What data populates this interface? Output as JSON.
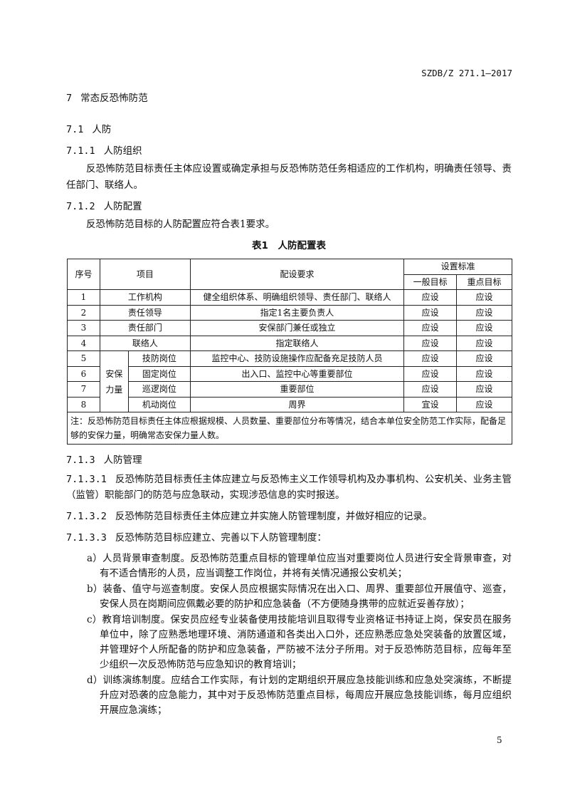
{
  "header": {
    "doc_code": "SZDB/Z 271.1—2017"
  },
  "sections": {
    "s7": {
      "num": "7",
      "title": "常态反恐怖防范"
    },
    "s71": {
      "num": "7.1",
      "title": "人防"
    },
    "s711": {
      "num": "7.1.1",
      "title": "人防组织",
      "para": "反恐怖防范目标责任主体应设置或确定承担与反恐怖防范任务相适应的工作机构，明确责任领导、责任部门、联络人。"
    },
    "s712": {
      "num": "7.1.2",
      "title": "人防配置",
      "para": "反恐怖防范目标的人防配置应符合表1要求。"
    },
    "s713": {
      "num": "7.1.3",
      "title": "人防管理"
    }
  },
  "table": {
    "caption": "表1　人防配置表",
    "headers": {
      "no": "序号",
      "item": "项目",
      "req": "配设要求",
      "std": "设置标准",
      "general": "一般目标",
      "key": "重点目标"
    },
    "group_label": "安保力量",
    "rows": [
      {
        "no": "1",
        "item": "工作机构",
        "req": "健全组织体系、明确组织领导、责任部门、联络人",
        "general": "应设",
        "key": "应设"
      },
      {
        "no": "2",
        "item": "责任领导",
        "req": "指定1名主要负责人",
        "general": "应设",
        "key": "应设"
      },
      {
        "no": "3",
        "item": "责任部门",
        "req": "安保部门兼任或独立",
        "general": "应设",
        "key": "应设"
      },
      {
        "no": "4",
        "item": "联络人",
        "req": "指定联络人",
        "general": "应设",
        "key": "应设"
      },
      {
        "no": "5",
        "item": "技防岗位",
        "req": "监控中心、技防设施操作应配备充足技防人员",
        "general": "应设",
        "key": "应设"
      },
      {
        "no": "6",
        "item": "固定岗位",
        "req": "出入口、监控中心等重要部位",
        "general": "应设",
        "key": "应设"
      },
      {
        "no": "7",
        "item": "巡逻岗位",
        "req": "重要部位",
        "general": "应设",
        "key": "应设"
      },
      {
        "no": "8",
        "item": "机动岗位",
        "req": "周界",
        "general": "宜设",
        "key": "应设"
      }
    ],
    "note": "注：反恐怖防范目标责任主体应根据规模、人员数量、重要部位分布等情况，结合本单位安全防范工作实际，配备足够的安保力量，明确常态安保力量人数。"
  },
  "clauses": [
    {
      "num": "7.1.3.1",
      "text": "反恐怖防范目标责任主体应建立与反恐怖主义工作领导机构及办事机构、公安机关、业务主管（监管）职能部门的防范与应急联动，实现涉恐信息的实时报送。"
    },
    {
      "num": "7.1.3.2",
      "text": "反恐怖防范目标责任主体应建立并实施人防管理制度，并做好相应的记录。"
    },
    {
      "num": "7.1.3.3",
      "text": "反恐怖防范目标应建立、完善以下人防管理制度："
    }
  ],
  "list": [
    "a）人员背景审查制度。反恐怖防范重点目标的管理单位应当对重要岗位人员进行安全背景审查，对有不适合情形的人员，应当调整工作岗位，并将有关情况通报公安机关；",
    "b）装备、值守与巡查制度。安保人员应根据实际情况在出入口、周界、重要部位开展值守、巡查，安保人员在岗期间应佩戴必要的防护和应急装备（不方便随身携带的应就近妥善存放）；",
    "c）教育培训制度。保安员应经专业装备使用技能培训且取得专业资格证书持证上岗，保安员在服务单位中，除了应熟悉地理环境、消防通道和各类出入口外，还应熟悉应急处突装备的放置区域，并管理好个人所配备的防护和应急装备，严防被不法分子所用。对于反恐怖防范目标，应每年至少组织一次反恐怖防范与应急知识的教育培训；",
    "d）训练演练制度。应结合工作实际，有计划的定期组织开展应急技能训练和应急处突演练，不断提升应对恐袭的应急能力，其中对于反恐怖防范重点目标，每周应开展应急技能训练，每月应组织开展应急演练；"
  ],
  "footer": {
    "page_number": "5"
  }
}
